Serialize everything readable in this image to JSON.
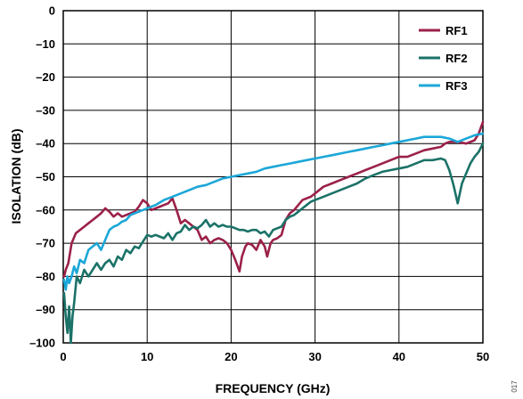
{
  "chart_data": {
    "type": "line",
    "title": "",
    "xlabel": "FREQUENCY (GHz)",
    "ylabel": "ISOLATION (dB)",
    "xlim": [
      0,
      50
    ],
    "ylim": [
      -100,
      0
    ],
    "xticks": [
      0,
      10,
      20,
      30,
      40,
      50
    ],
    "yticks": [
      0,
      -10,
      -20,
      -30,
      -40,
      -50,
      -60,
      -70,
      -80,
      -90,
      -100
    ],
    "x_tick_labels": [
      "0",
      "10",
      "20",
      "30",
      "40",
      "50"
    ],
    "y_tick_labels": [
      "0",
      "–10",
      "–20",
      "–30",
      "–40",
      "–50",
      "–60",
      "–70",
      "–80",
      "–90",
      "–100"
    ],
    "grid": true,
    "legend_position": "top-right",
    "figure_number": "017",
    "series": [
      {
        "name": "RF1",
        "color": "#9b2148",
        "points": [
          [
            0.1,
            -80
          ],
          [
            0.3,
            -78
          ],
          [
            0.6,
            -76
          ],
          [
            1.0,
            -70
          ],
          [
            1.5,
            -67
          ],
          [
            2.0,
            -66
          ],
          [
            2.5,
            -65
          ],
          [
            3.0,
            -64
          ],
          [
            3.5,
            -63
          ],
          [
            4.0,
            -62
          ],
          [
            4.5,
            -61
          ],
          [
            5.0,
            -59.5
          ],
          [
            5.5,
            -60.5
          ],
          [
            6.0,
            -62
          ],
          [
            6.5,
            -61
          ],
          [
            7.0,
            -62
          ],
          [
            7.5,
            -61.5
          ],
          [
            8.0,
            -61
          ],
          [
            8.5,
            -60.5
          ],
          [
            9.0,
            -59
          ],
          [
            9.5,
            -57
          ],
          [
            10.0,
            -58
          ],
          [
            10.5,
            -60
          ],
          [
            11.0,
            -59.5
          ],
          [
            11.5,
            -59
          ],
          [
            12.0,
            -58.5
          ],
          [
            12.5,
            -58
          ],
          [
            13.0,
            -56.5
          ],
          [
            13.5,
            -60
          ],
          [
            14.0,
            -64
          ],
          [
            14.5,
            -63
          ],
          [
            15.0,
            -64
          ],
          [
            15.5,
            -65
          ],
          [
            16.0,
            -66
          ],
          [
            16.5,
            -69
          ],
          [
            17.0,
            -68
          ],
          [
            17.5,
            -70
          ],
          [
            18.0,
            -69
          ],
          [
            18.5,
            -68.5
          ],
          [
            19.0,
            -69
          ],
          [
            19.5,
            -70
          ],
          [
            20.0,
            -72
          ],
          [
            20.5,
            -75
          ],
          [
            21.0,
            -78.5
          ],
          [
            21.3,
            -74
          ],
          [
            21.7,
            -71
          ],
          [
            22.0,
            -70
          ],
          [
            22.5,
            -70.5
          ],
          [
            23.0,
            -72
          ],
          [
            23.5,
            -69
          ],
          [
            24.0,
            -71
          ],
          [
            24.3,
            -74
          ],
          [
            24.7,
            -70
          ],
          [
            25.0,
            -69
          ],
          [
            25.5,
            -68.5
          ],
          [
            26.0,
            -67.5
          ],
          [
            26.5,
            -63
          ],
          [
            27.0,
            -61
          ],
          [
            27.5,
            -60
          ],
          [
            28.0,
            -58.5
          ],
          [
            28.5,
            -57
          ],
          [
            29.0,
            -56.5
          ],
          [
            29.5,
            -56
          ],
          [
            30.0,
            -55
          ],
          [
            31.0,
            -53
          ],
          [
            32.0,
            -52
          ],
          [
            33.0,
            -51
          ],
          [
            34.0,
            -50
          ],
          [
            35.0,
            -49
          ],
          [
            36.0,
            -48
          ],
          [
            37.0,
            -47
          ],
          [
            38.0,
            -46
          ],
          [
            39.0,
            -45
          ],
          [
            40.0,
            -44
          ],
          [
            41.0,
            -44
          ],
          [
            42.0,
            -43
          ],
          [
            43.0,
            -42
          ],
          [
            44.0,
            -41.5
          ],
          [
            45.0,
            -41
          ],
          [
            45.5,
            -40
          ],
          [
            46.0,
            -39.5
          ],
          [
            47.0,
            -39.5
          ],
          [
            48.0,
            -40
          ],
          [
            49.0,
            -39
          ],
          [
            49.5,
            -37
          ],
          [
            50.0,
            -33.5
          ]
        ]
      },
      {
        "name": "RF2",
        "color": "#1b7268",
        "points": [
          [
            0.1,
            -85
          ],
          [
            0.3,
            -92
          ],
          [
            0.5,
            -97
          ],
          [
            0.7,
            -89
          ],
          [
            0.9,
            -100
          ],
          [
            1.1,
            -92
          ],
          [
            1.3,
            -88
          ],
          [
            1.6,
            -80
          ],
          [
            2.0,
            -82
          ],
          [
            2.5,
            -78
          ],
          [
            3.0,
            -80
          ],
          [
            3.5,
            -78
          ],
          [
            4.0,
            -76
          ],
          [
            4.5,
            -78
          ],
          [
            5.0,
            -76
          ],
          [
            5.5,
            -75
          ],
          [
            6.0,
            -77
          ],
          [
            6.5,
            -74
          ],
          [
            7.0,
            -75
          ],
          [
            7.5,
            -72
          ],
          [
            8.0,
            -73
          ],
          [
            8.5,
            -71
          ],
          [
            9.0,
            -71.5
          ],
          [
            9.5,
            -69.5
          ],
          [
            10.0,
            -67.5
          ],
          [
            10.5,
            -68
          ],
          [
            11.0,
            -67.5
          ],
          [
            11.5,
            -68
          ],
          [
            12.0,
            -68.5
          ],
          [
            12.5,
            -67
          ],
          [
            13.0,
            -69
          ],
          [
            13.5,
            -67
          ],
          [
            14.0,
            -66.5
          ],
          [
            14.5,
            -64.5
          ],
          [
            15.0,
            -66
          ],
          [
            15.5,
            -65
          ],
          [
            16.0,
            -65.5
          ],
          [
            16.5,
            -64.5
          ],
          [
            17.0,
            -63
          ],
          [
            17.5,
            -65
          ],
          [
            18.0,
            -64
          ],
          [
            18.5,
            -65
          ],
          [
            19.0,
            -64.5
          ],
          [
            19.5,
            -65
          ],
          [
            20.0,
            -65
          ],
          [
            20.5,
            -65.5
          ],
          [
            21.0,
            -66
          ],
          [
            21.5,
            -66
          ],
          [
            22.0,
            -66.5
          ],
          [
            22.5,
            -66
          ],
          [
            23.0,
            -66
          ],
          [
            23.5,
            -67
          ],
          [
            24.0,
            -66.5
          ],
          [
            24.5,
            -68
          ],
          [
            25.0,
            -66
          ],
          [
            25.5,
            -65.5
          ],
          [
            26.0,
            -65
          ],
          [
            26.5,
            -63
          ],
          [
            27.0,
            -62
          ],
          [
            27.5,
            -61.5
          ],
          [
            28.0,
            -60.5
          ],
          [
            28.5,
            -59.5
          ],
          [
            29.0,
            -58.5
          ],
          [
            29.5,
            -57.5
          ],
          [
            30.0,
            -57
          ],
          [
            31.0,
            -56
          ],
          [
            32.0,
            -55
          ],
          [
            33.0,
            -54
          ],
          [
            34.0,
            -53
          ],
          [
            35.0,
            -52
          ],
          [
            36.0,
            -50.5
          ],
          [
            37.0,
            -49.5
          ],
          [
            38.0,
            -48.5
          ],
          [
            39.0,
            -48
          ],
          [
            40.0,
            -47.5
          ],
          [
            41.0,
            -47
          ],
          [
            42.0,
            -46
          ],
          [
            43.0,
            -45
          ],
          [
            44.0,
            -45
          ],
          [
            45.0,
            -44.5
          ],
          [
            45.5,
            -45
          ],
          [
            46.0,
            -48
          ],
          [
            46.5,
            -52.5
          ],
          [
            47.0,
            -58
          ],
          [
            47.5,
            -52
          ],
          [
            48.0,
            -49
          ],
          [
            48.5,
            -46
          ],
          [
            49.0,
            -44
          ],
          [
            49.5,
            -42.5
          ],
          [
            50.0,
            -40
          ]
        ]
      },
      {
        "name": "RF3",
        "color": "#1ba7d8",
        "points": [
          [
            0.1,
            -81
          ],
          [
            0.3,
            -84
          ],
          [
            0.5,
            -80
          ],
          [
            0.7,
            -82
          ],
          [
            1.0,
            -80
          ],
          [
            1.3,
            -77
          ],
          [
            1.6,
            -79
          ],
          [
            2.0,
            -75
          ],
          [
            2.5,
            -76
          ],
          [
            3.0,
            -72
          ],
          [
            3.5,
            -71
          ],
          [
            4.0,
            -70
          ],
          [
            4.5,
            -72
          ],
          [
            5.0,
            -69
          ],
          [
            5.5,
            -66
          ],
          [
            6.0,
            -65
          ],
          [
            6.5,
            -64.5
          ],
          [
            7.0,
            -63.5
          ],
          [
            7.5,
            -63
          ],
          [
            8.0,
            -61.5
          ],
          [
            8.5,
            -61
          ],
          [
            9.0,
            -60.5
          ],
          [
            9.5,
            -60
          ],
          [
            10.0,
            -59.5
          ],
          [
            11.0,
            -58.5
          ],
          [
            12.0,
            -57
          ],
          [
            13.0,
            -56
          ],
          [
            14.0,
            -55
          ],
          [
            15.0,
            -54
          ],
          [
            16.0,
            -53
          ],
          [
            17.0,
            -52.5
          ],
          [
            18.0,
            -51.5
          ],
          [
            19.0,
            -50.5
          ],
          [
            20.0,
            -50
          ],
          [
            21.0,
            -49.5
          ],
          [
            22.0,
            -49
          ],
          [
            23.0,
            -48.5
          ],
          [
            24.0,
            -47.5
          ],
          [
            25.0,
            -47
          ],
          [
            26.0,
            -46.5
          ],
          [
            27.0,
            -46
          ],
          [
            28.0,
            -45.5
          ],
          [
            29.0,
            -45
          ],
          [
            30.0,
            -44.5
          ],
          [
            31.0,
            -44
          ],
          [
            32.0,
            -43.5
          ],
          [
            33.0,
            -43
          ],
          [
            34.0,
            -42.5
          ],
          [
            35.0,
            -42
          ],
          [
            36.0,
            -41.5
          ],
          [
            37.0,
            -41
          ],
          [
            38.0,
            -40.5
          ],
          [
            39.0,
            -40
          ],
          [
            40.0,
            -39.5
          ],
          [
            41.0,
            -39
          ],
          [
            42.0,
            -38.5
          ],
          [
            43.0,
            -38
          ],
          [
            44.0,
            -38
          ],
          [
            45.0,
            -38
          ],
          [
            46.0,
            -38.5
          ],
          [
            47.0,
            -39.5
          ],
          [
            48.0,
            -38.5
          ],
          [
            49.0,
            -37.5
          ],
          [
            50.0,
            -37
          ]
        ]
      }
    ]
  }
}
